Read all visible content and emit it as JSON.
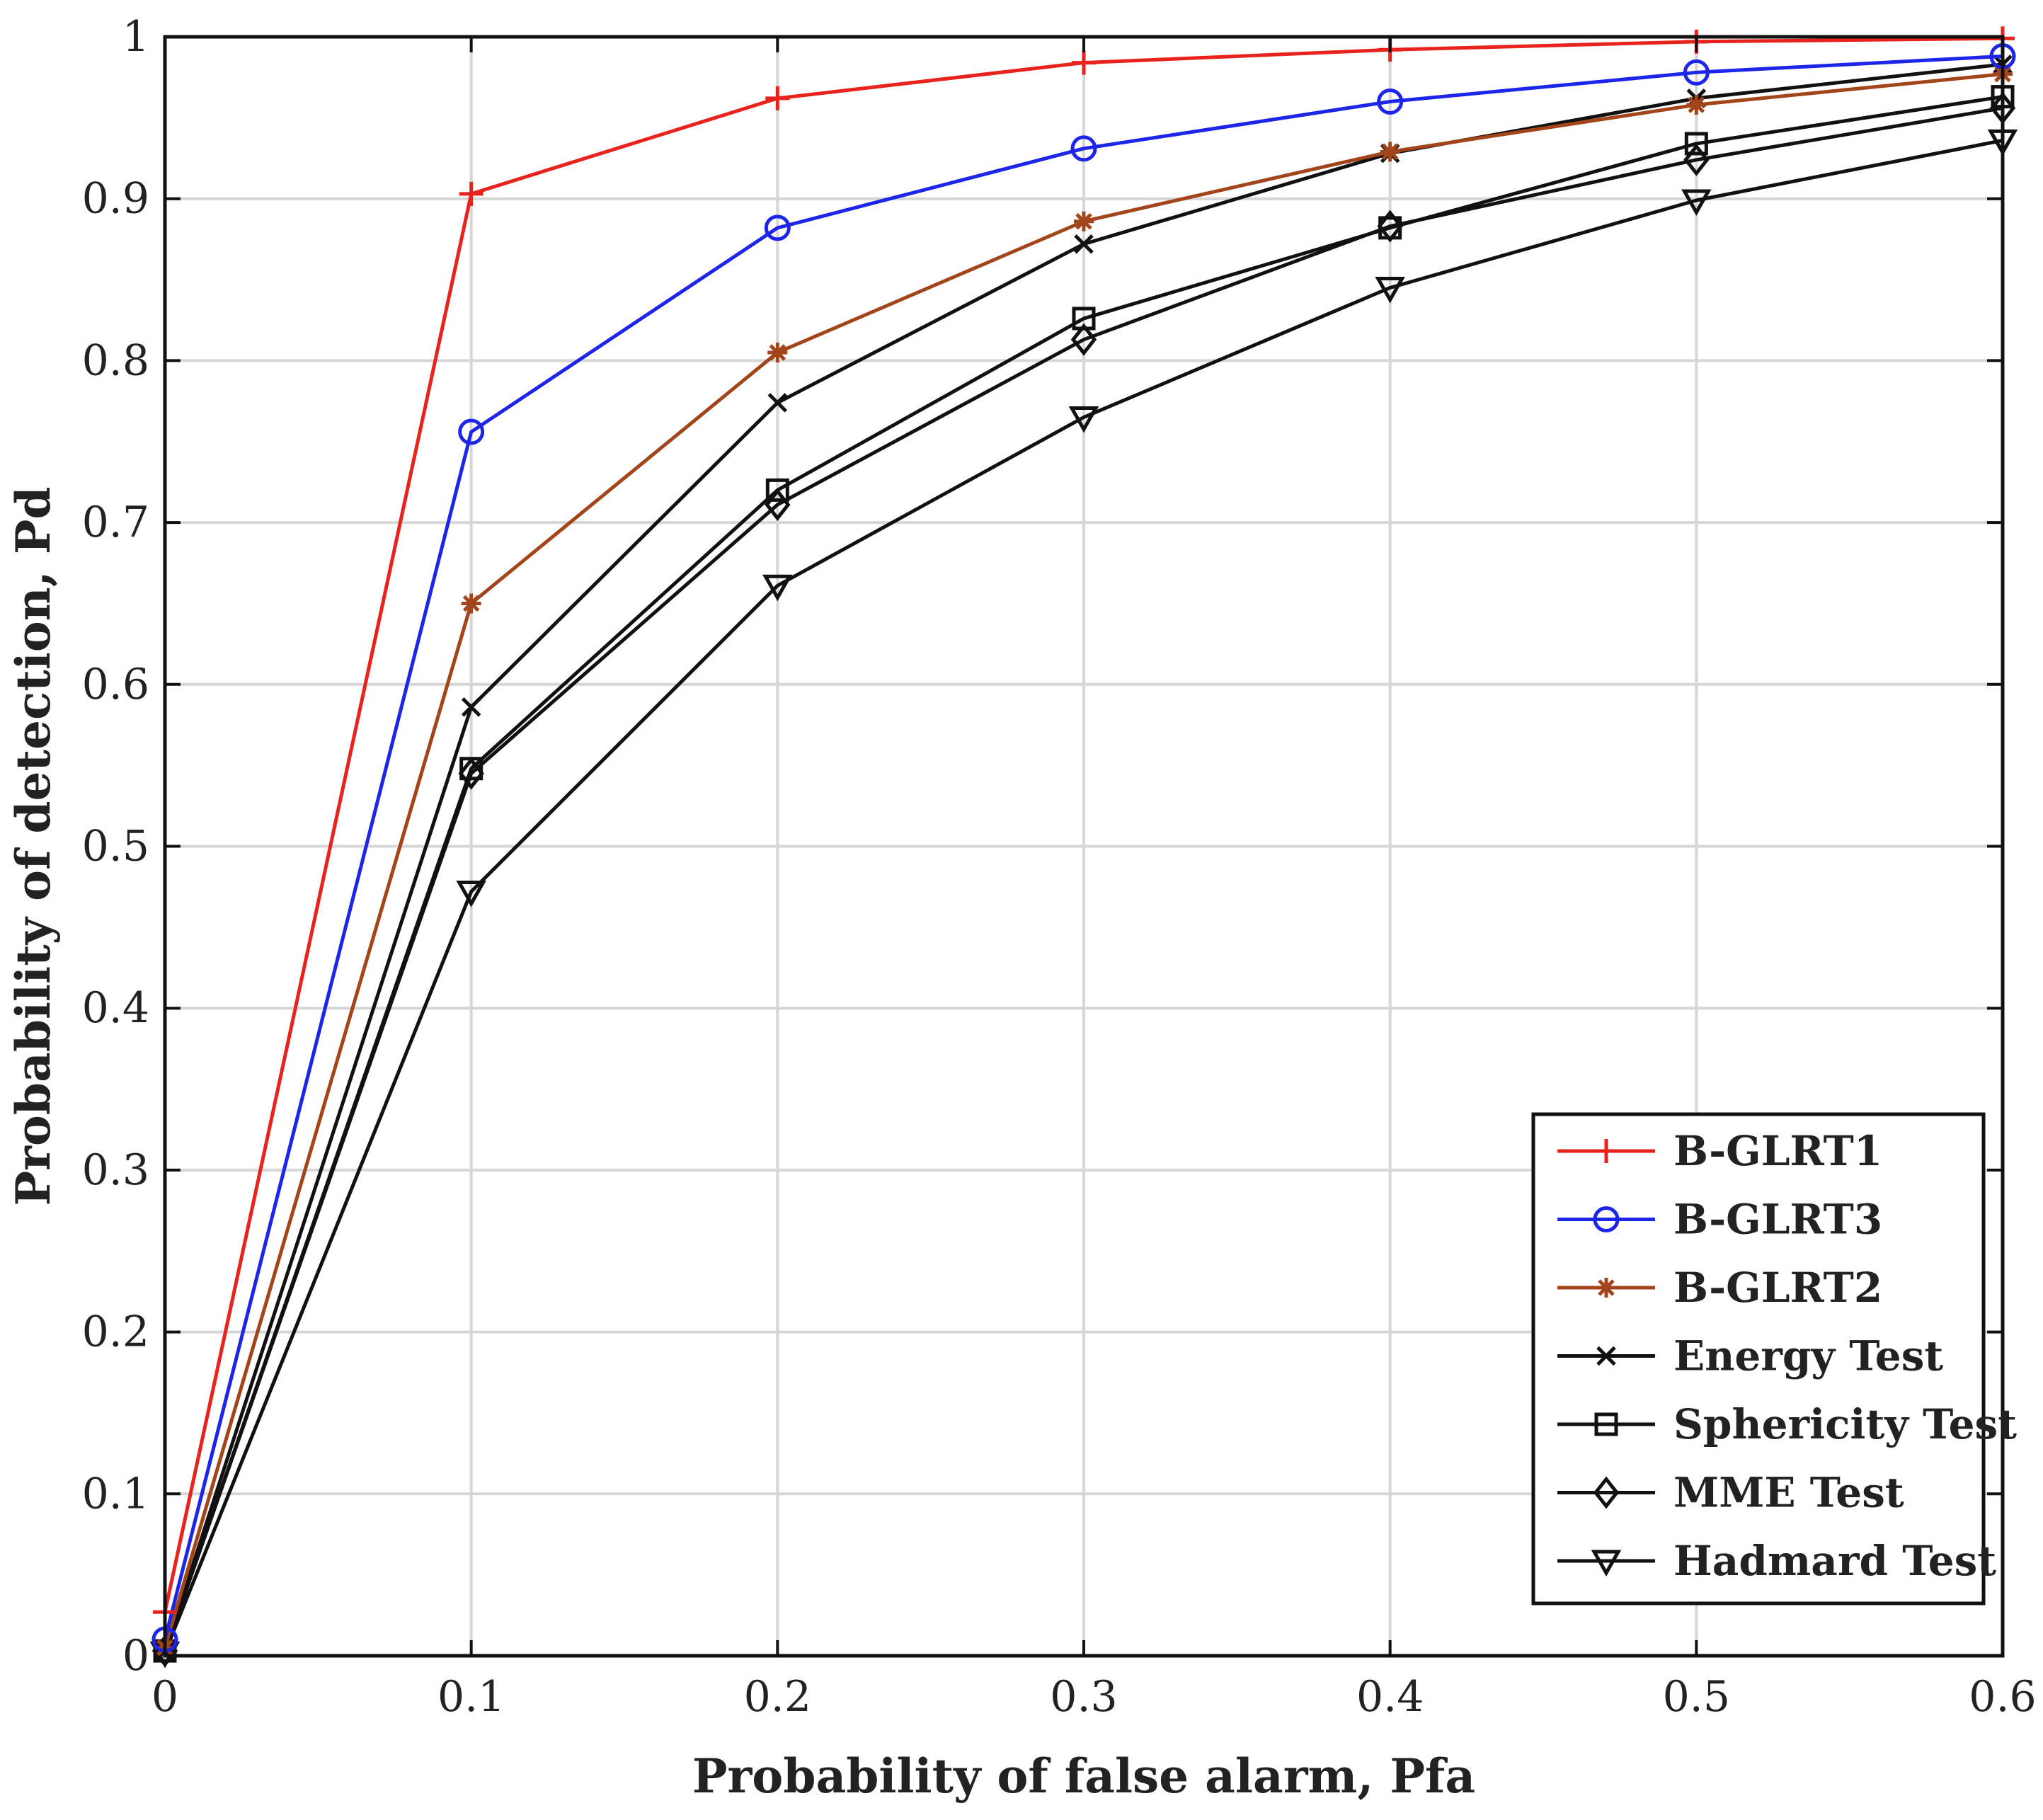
{
  "chart_data": {
    "type": "line",
    "xlabel": "Probability of false alarm, Pfa",
    "ylabel": "Probability of detection, Pd",
    "xlim": [
      0,
      0.6
    ],
    "ylim": [
      0,
      1
    ],
    "grid": true,
    "legend_position": "bottom-right",
    "x_ticks": [
      {
        "value": 0,
        "label": "0"
      },
      {
        "value": 0.1,
        "label": "0.1"
      },
      {
        "value": 0.2,
        "label": "0.2"
      },
      {
        "value": 0.3,
        "label": "0.3"
      },
      {
        "value": 0.4,
        "label": "0.4"
      },
      {
        "value": 0.5,
        "label": "0.5"
      },
      {
        "value": 0.6,
        "label": "0.6"
      }
    ],
    "y_ticks": [
      {
        "value": 0,
        "label": "0"
      },
      {
        "value": 0.1,
        "label": "0.1"
      },
      {
        "value": 0.2,
        "label": "0.2"
      },
      {
        "value": 0.3,
        "label": "0.3"
      },
      {
        "value": 0.4,
        "label": "0.4"
      },
      {
        "value": 0.5,
        "label": "0.5"
      },
      {
        "value": 0.6,
        "label": "0.6"
      },
      {
        "value": 0.7,
        "label": "0.7"
      },
      {
        "value": 0.8,
        "label": "0.8"
      },
      {
        "value": 0.9,
        "label": "0.9"
      },
      {
        "value": 1,
        "label": "1"
      }
    ],
    "x": [
      0,
      0.1,
      0.2,
      0.3,
      0.4,
      0.5,
      0.6
    ],
    "series": [
      {
        "name": "B-GLRT1",
        "color": "#e8221c",
        "marker": "plus",
        "values": [
          0.027,
          0.903,
          0.962,
          0.984,
          0.992,
          0.997,
          0.999
        ]
      },
      {
        "name": "B-GLRT3",
        "color": "#1c25e8",
        "marker": "circle",
        "values": [
          0.01,
          0.756,
          0.882,
          0.931,
          0.96,
          0.978,
          0.988
        ]
      },
      {
        "name": "B-GLRT2",
        "color": "#a3451a",
        "marker": "star",
        "values": [
          0.005,
          0.65,
          0.805,
          0.886,
          0.929,
          0.958,
          0.977
        ]
      },
      {
        "name": "Energy Test",
        "color": "#111111",
        "marker": "x",
        "values": [
          0.003,
          0.586,
          0.774,
          0.872,
          0.928,
          0.962,
          0.983
        ]
      },
      {
        "name": "Sphericity Test",
        "color": "#111111",
        "marker": "square",
        "values": [
          0.003,
          0.548,
          0.72,
          0.826,
          0.882,
          0.934,
          0.963
        ]
      },
      {
        "name": "MME Test",
        "color": "#111111",
        "marker": "diamond",
        "values": [
          0.003,
          0.545,
          0.711,
          0.813,
          0.883,
          0.924,
          0.956
        ]
      },
      {
        "name": "Hadmard Test",
        "color": "#111111",
        "marker": "triangle-down",
        "values": [
          0.002,
          0.472,
          0.661,
          0.765,
          0.845,
          0.899,
          0.936
        ]
      }
    ]
  }
}
